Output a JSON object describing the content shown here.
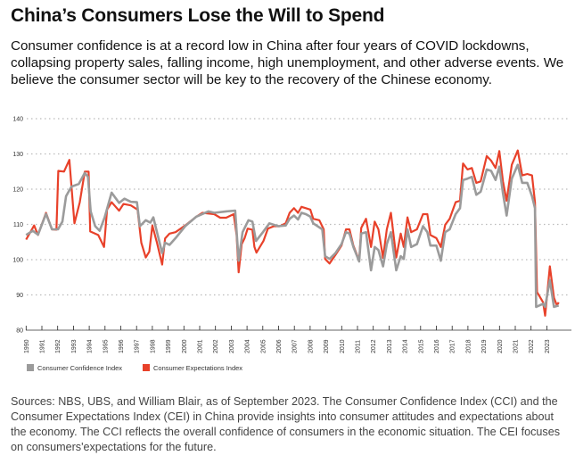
{
  "header": {
    "title": "China’s Consumers Lose the Will to Spend",
    "subtitle": "Consumer confidence is at a record low in China after four years of COVID lockdowns, collapsing property sales, falling income, high unemployment, and other adverse events. We believe the consumer sector will be key to the recovery of the Chinese economy."
  },
  "footer": {
    "note": "Sources: NBS, UBS, and William Blair, as of September 2023. The Consumer Confidence Index (CCI) and the Consumer Expectations Index (CEI) in China provide insights into consumer attitudes and expectations about the economy. The CCI reflects the overall confidence of consumers in the economic situation. The CEI focuses on consumers'expectations for the future."
  },
  "chart_data": {
    "type": "line",
    "title": "",
    "xlabel": "",
    "ylabel": "",
    "ylim": [
      80,
      140
    ],
    "xlim": [
      1990,
      2023.9
    ],
    "y_ticks": [
      "80",
      "90",
      "100",
      "110",
      "120",
      "130",
      "140"
    ],
    "x_ticks": [
      "1990",
      "1991",
      "1992",
      "1993",
      "1994",
      "1995",
      "1996",
      "1997",
      "1998",
      "1999",
      "2000",
      "2001",
      "2002",
      "2003",
      "2004",
      "2005",
      "2006",
      "2007",
      "2008",
      "2009",
      "2010",
      "2011",
      "2012",
      "2013",
      "2014",
      "2015",
      "2016",
      "2017",
      "2018",
      "2019",
      "2020",
      "2021",
      "2022",
      "2023"
    ],
    "grid": "horizontal dotted",
    "legend": "bottom-left",
    "series": [
      {
        "name": "Consumer Confidence Index",
        "color": "#9b9b9b",
        "x": [
          1990.0,
          1990.42,
          1990.75,
          1991.26,
          1991.64,
          1992.02,
          1992.3,
          1992.53,
          1992.87,
          1993.34,
          1993.72,
          1993.92,
          1994.09,
          1994.38,
          1994.66,
          1994.98,
          1995.42,
          1995.89,
          1996.23,
          1996.64,
          1997.02,
          1997.21,
          1997.58,
          1997.87,
          1998.06,
          1998.34,
          1998.62,
          1998.81,
          1999.09,
          1999.47,
          2000.08,
          2000.79,
          2001.55,
          2001.92,
          2002.68,
          2003.25,
          2003.47,
          2003.72,
          2004.09,
          2004.34,
          2004.57,
          2005.04,
          2005.42,
          2005.98,
          2006.45,
          2006.7,
          2006.98,
          2007.23,
          2007.45,
          2007.73,
          2008.01,
          2008.2,
          2008.77,
          2008.95,
          2009.23,
          2009.61,
          2009.99,
          2010.27,
          2010.49,
          2010.74,
          2011.11,
          2011.24,
          2011.54,
          2011.86,
          2012.09,
          2012.33,
          2012.62,
          2012.86,
          2013.12,
          2013.46,
          2013.74,
          2013.93,
          2014.17,
          2014.4,
          2014.77,
          2015.15,
          2015.43,
          2015.62,
          2016.0,
          2016.28,
          2016.56,
          2016.84,
          2017.22,
          2017.5,
          2017.69,
          2017.97,
          2018.25,
          2018.53,
          2018.81,
          2019.19,
          2019.47,
          2019.75,
          2019.99,
          2020.22,
          2020.45,
          2020.78,
          2021.16,
          2021.44,
          2021.76,
          2022.06,
          2022.25,
          2022.32,
          2022.76,
          2022.89,
          2023.19,
          2023.45,
          2023.75
        ],
        "values": [
          107,
          108.2,
          107.1,
          113,
          108.6,
          108.6,
          110.8,
          118,
          120.7,
          121.5,
          124.6,
          123.5,
          113.7,
          109.5,
          108.2,
          112,
          119,
          116.1,
          117.3,
          116.4,
          116.3,
          109.5,
          111.2,
          110.5,
          112,
          107,
          101.9,
          104.8,
          104.2,
          106.1,
          109.5,
          112.2,
          113.7,
          113.3,
          113.7,
          113.9,
          99.7,
          107.8,
          111.2,
          110.8,
          105.3,
          108,
          110.3,
          109.5,
          109.7,
          111.6,
          112.5,
          111.4,
          113.3,
          112.9,
          112.2,
          110.3,
          108.6,
          101,
          100.2,
          101.9,
          104.4,
          107.8,
          107.4,
          103.6,
          99.5,
          107.4,
          107.8,
          97,
          103.6,
          102.7,
          98.1,
          104.4,
          107.8,
          97,
          101,
          100.2,
          108.6,
          103.6,
          104.4,
          109.5,
          107.8,
          104,
          104,
          99.7,
          107.8,
          108.6,
          112.9,
          114.6,
          122.6,
          123,
          123.5,
          118.4,
          119.3,
          125.6,
          125.2,
          122.6,
          126.4,
          118.8,
          112.5,
          123,
          126.9,
          121.8,
          121.8,
          118,
          114.6,
          86.6,
          87.5,
          86.6,
          94.2,
          86.6,
          87
        ]
      },
      {
        "name": "Consumer Expectations Index",
        "color": "#e8412a",
        "x": [
          1990.0,
          1990.51,
          1990.75,
          1991.26,
          1991.64,
          1991.92,
          1992.04,
          1992.4,
          1992.74,
          1993.06,
          1993.4,
          1993.72,
          1993.96,
          1994.06,
          1994.57,
          1994.94,
          1995.13,
          1995.42,
          1995.89,
          1996.17,
          1996.64,
          1997.06,
          1997.3,
          1997.58,
          1997.81,
          1998.0,
          1998.28,
          1998.62,
          1998.81,
          1999.09,
          1999.47,
          2000.08,
          2000.79,
          2001.17,
          2001.92,
          2002.3,
          2002.68,
          2003.15,
          2003.34,
          2003.47,
          2003.66,
          2003.85,
          2004.04,
          2004.34,
          2004.47,
          2004.6,
          2005.04,
          2005.32,
          2005.7,
          2006.08,
          2006.45,
          2006.7,
          2006.98,
          2007.23,
          2007.45,
          2007.73,
          2008.01,
          2008.2,
          2008.58,
          2008.86,
          2008.95,
          2009.23,
          2009.61,
          2009.99,
          2010.27,
          2010.49,
          2010.74,
          2011.11,
          2011.24,
          2011.54,
          2011.86,
          2012.09,
          2012.33,
          2012.62,
          2012.86,
          2013.12,
          2013.46,
          2013.74,
          2013.93,
          2014.17,
          2014.4,
          2014.77,
          2015.15,
          2015.43,
          2015.62,
          2016.0,
          2016.28,
          2016.56,
          2016.84,
          2017.22,
          2017.5,
          2017.69,
          2017.97,
          2018.25,
          2018.53,
          2018.81,
          2019.19,
          2019.47,
          2019.75,
          2019.99,
          2020.22,
          2020.45,
          2020.78,
          2021.16,
          2021.44,
          2021.76,
          2022.06,
          2022.25,
          2022.38,
          2022.76,
          2022.89,
          2023.19,
          2023.45,
          2023.64,
          2023.75
        ],
        "values": [
          105.7,
          109.7,
          107,
          113.3,
          108.6,
          108.5,
          125.2,
          125,
          128.3,
          110.3,
          116.3,
          125,
          125,
          108,
          107,
          103.6,
          114.2,
          116.3,
          113.9,
          115.8,
          115.4,
          114.2,
          104.8,
          100.6,
          102.3,
          109.7,
          105,
          98.6,
          106,
          107.4,
          107.8,
          109.7,
          112.2,
          113.3,
          112.9,
          111.9,
          111.9,
          112.9,
          107,
          96.4,
          104.4,
          106.1,
          108.8,
          108.5,
          103.6,
          102,
          105.3,
          108.8,
          109.5,
          109.5,
          110.3,
          113.3,
          114.6,
          113.3,
          115,
          114.6,
          114.2,
          111.6,
          111.2,
          108.6,
          100.2,
          98.9,
          101.4,
          104,
          108.6,
          108.6,
          104,
          99.7,
          109,
          111.6,
          103.6,
          110.8,
          108.6,
          100.5,
          108.6,
          113.3,
          100.6,
          107.4,
          103.6,
          112,
          107.8,
          108.6,
          112.9,
          112.9,
          107,
          106.1,
          103.6,
          109.9,
          111.6,
          116.3,
          116.7,
          127.3,
          125.6,
          126,
          121.8,
          122.2,
          129.4,
          128.1,
          126,
          130.8,
          122.2,
          116.7,
          126.9,
          131,
          123.9,
          124.3,
          123.9,
          116.3,
          90.8,
          87.9,
          84.1,
          98.1,
          89.2,
          87,
          87.9
        ]
      }
    ]
  }
}
